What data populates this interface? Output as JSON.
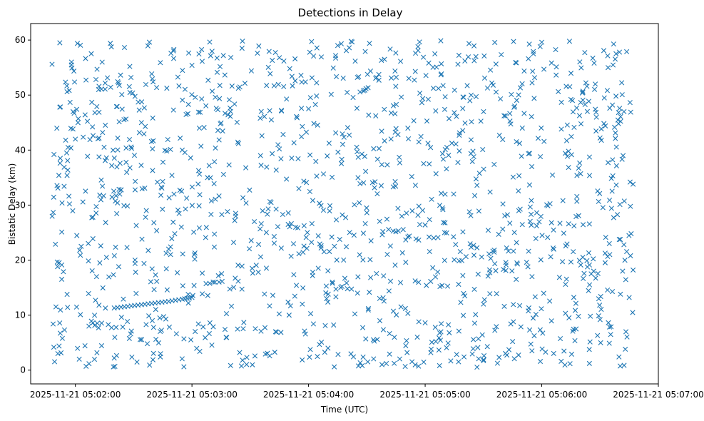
{
  "chart_data": {
    "type": "scatter",
    "title": "Detections in Delay",
    "xlabel": "Time (UTC)",
    "ylabel": "Bistatic Delay (km)",
    "marker": "x",
    "color": "#1f77b4",
    "grid": false,
    "xlim": [
      "2025-11-21 05:01:37",
      "2025-11-21 05:07:00"
    ],
    "ylim": [
      -2.5,
      63
    ],
    "x_ticks": [
      "2025-11-21 05:02:00",
      "2025-11-21 05:03:00",
      "2025-11-21 05:04:00",
      "2025-11-21 05:05:00",
      "2025-11-21 05:06:00",
      "2025-11-21 05:07:00"
    ],
    "y_ticks": [
      0,
      10,
      20,
      30,
      40,
      50,
      60
    ],
    "time_span": [
      "2025-11-21 05:01:48",
      "2025-11-21 05:06:47"
    ],
    "track": {
      "description": "visible linear track of detections",
      "x": [
        "2025-11-21 05:02:20",
        "2025-11-21 05:02:27",
        "2025-11-21 05:02:34",
        "2025-11-21 05:02:41",
        "2025-11-21 05:02:48",
        "2025-11-21 05:02:55",
        "2025-11-21 05:03:00"
      ],
      "y": [
        11.3,
        11.6,
        11.9,
        12.2,
        12.5,
        12.9,
        13.2
      ]
    },
    "series": [
      {
        "points": [
          [
            "2025-11-21 05:01:48",
            55.6
          ],
          [
            "2025-11-21 05:01:49",
            39.2
          ],
          [
            "2025-11-21 05:01:50",
            11.5
          ],
          [
            "2025-11-21 05:01:51",
            3.0
          ],
          [
            "2025-11-21 05:01:51",
            33.1
          ],
          [
            "2025-11-21 05:01:52",
            47.8
          ],
          [
            "2025-11-21 05:01:52",
            59.5
          ],
          [
            "2025-11-21 05:01:53",
            25.1
          ],
          [
            "2025-11-21 05:01:55",
            41.8
          ],
          [
            "2025-11-21 05:01:56",
            11.4
          ],
          [
            "2025-11-21 05:01:58",
            56.0
          ],
          [
            "2025-11-21 05:02:00",
            42.0
          ],
          [
            "2025-11-21 05:02:02",
            2.0
          ],
          [
            "2025-11-21 05:02:03",
            22.5
          ],
          [
            "2025-11-21 05:02:05",
            46.4
          ],
          [
            "2025-11-21 05:02:07",
            8.0
          ],
          [
            "2025-11-21 05:02:09",
            27.8
          ],
          [
            "2025-11-21 05:02:12",
            51.0
          ],
          [
            "2025-11-21 05:02:14",
            43.2
          ],
          [
            "2025-11-21 05:02:16",
            20.5
          ],
          [
            "2025-11-21 05:02:18",
            59.4
          ],
          [
            "2025-11-21 05:02:20",
            2.2
          ],
          [
            "2025-11-21 05:02:23",
            37.6
          ],
          [
            "2025-11-21 05:02:25",
            29.9
          ],
          [
            "2025-11-21 05:02:28",
            55.2
          ],
          [
            "2025-11-21 05:02:31",
            17.8
          ],
          [
            "2025-11-21 05:02:34",
            45.0
          ],
          [
            "2025-11-21 05:02:37",
            4.8
          ],
          [
            "2025-11-21 05:02:40",
            52.4
          ],
          [
            "2025-11-21 05:02:44",
            31.8
          ],
          [
            "2025-11-21 05:02:48",
            22.0
          ],
          [
            "2025-11-21 05:02:52",
            6.6
          ],
          [
            "2025-11-21 05:02:55",
            40.0
          ],
          [
            "2025-11-21 05:03:00",
            55.4
          ],
          [
            "2025-11-21 05:03:04",
            3.4
          ],
          [
            "2025-11-21 05:03:08",
            35.0
          ],
          [
            "2025-11-21 05:03:12",
            49.6
          ],
          [
            "2025-11-21 05:03:17",
            7.4
          ],
          [
            "2025-11-21 05:03:22",
            27.2
          ],
          [
            "2025-11-21 05:03:26",
            59.8
          ],
          [
            "2025-11-21 05:03:31",
            18.5
          ],
          [
            "2025-11-21 05:03:36",
            42.6
          ],
          [
            "2025-11-21 05:03:40",
            2.6
          ],
          [
            "2025-11-21 05:03:45",
            56.8
          ],
          [
            "2025-11-21 05:03:50",
            10.0
          ],
          [
            "2025-11-21 05:03:55",
            33.0
          ],
          [
            "2025-11-21 05:04:00",
            47.5
          ],
          [
            "2025-11-21 05:04:05",
            24.4
          ],
          [
            "2025-11-21 05:04:10",
            4.0
          ],
          [
            "2025-11-21 05:04:15",
            59.0
          ],
          [
            "2025-11-21 05:04:20",
            14.8
          ],
          [
            "2025-11-21 05:04:25",
            39.7
          ],
          [
            "2025-11-21 05:04:30",
            28.6
          ],
          [
            "2025-11-21 05:04:35",
            53.2
          ],
          [
            "2025-11-21 05:04:40",
            1.2
          ],
          [
            "2025-11-21 05:04:45",
            43.9
          ],
          [
            "2025-11-21 05:04:50",
            19.6
          ],
          [
            "2025-11-21 05:04:55",
            33.6
          ],
          [
            "2025-11-21 05:05:00",
            8.6
          ],
          [
            "2025-11-21 05:05:05",
            57.5
          ],
          [
            "2025-11-21 05:05:10",
            25.0
          ],
          [
            "2025-11-21 05:05:15",
            46.8
          ],
          [
            "2025-11-21 05:05:20",
            2.4
          ],
          [
            "2025-11-21 05:05:25",
            38.8
          ],
          [
            "2025-11-21 05:05:30",
            12.0
          ],
          [
            "2025-11-21 05:05:35",
            51.8
          ],
          [
            "2025-11-21 05:05:40",
            30.2
          ],
          [
            "2025-11-21 05:05:45",
            5.2
          ],
          [
            "2025-11-21 05:05:50",
            44.0
          ],
          [
            "2025-11-21 05:05:55",
            17.0
          ],
          [
            "2025-11-21 05:06:00",
            59.6
          ],
          [
            "2025-11-21 05:06:05",
            26.8
          ],
          [
            "2025-11-21 05:06:10",
            1.6
          ],
          [
            "2025-11-21 05:06:15",
            49.2
          ],
          [
            "2025-11-21 05:06:20",
            35.7
          ],
          [
            "2025-11-21 05:06:25",
            9.8
          ],
          [
            "2025-11-21 05:06:30",
            42.2
          ],
          [
            "2025-11-21 05:06:35",
            21.0
          ],
          [
            "2025-11-21 05:06:40",
            57.8
          ],
          [
            "2025-11-21 05:06:43",
            3.8
          ],
          [
            "2025-11-21 05:06:45",
            13.2
          ],
          [
            "2025-11-21 05:06:46",
            24.8
          ],
          [
            "2025-11-21 05:06:47",
            33.8
          ],
          [
            "2025-11-21 05:06:47",
            18.2
          ]
        ]
      }
    ]
  }
}
